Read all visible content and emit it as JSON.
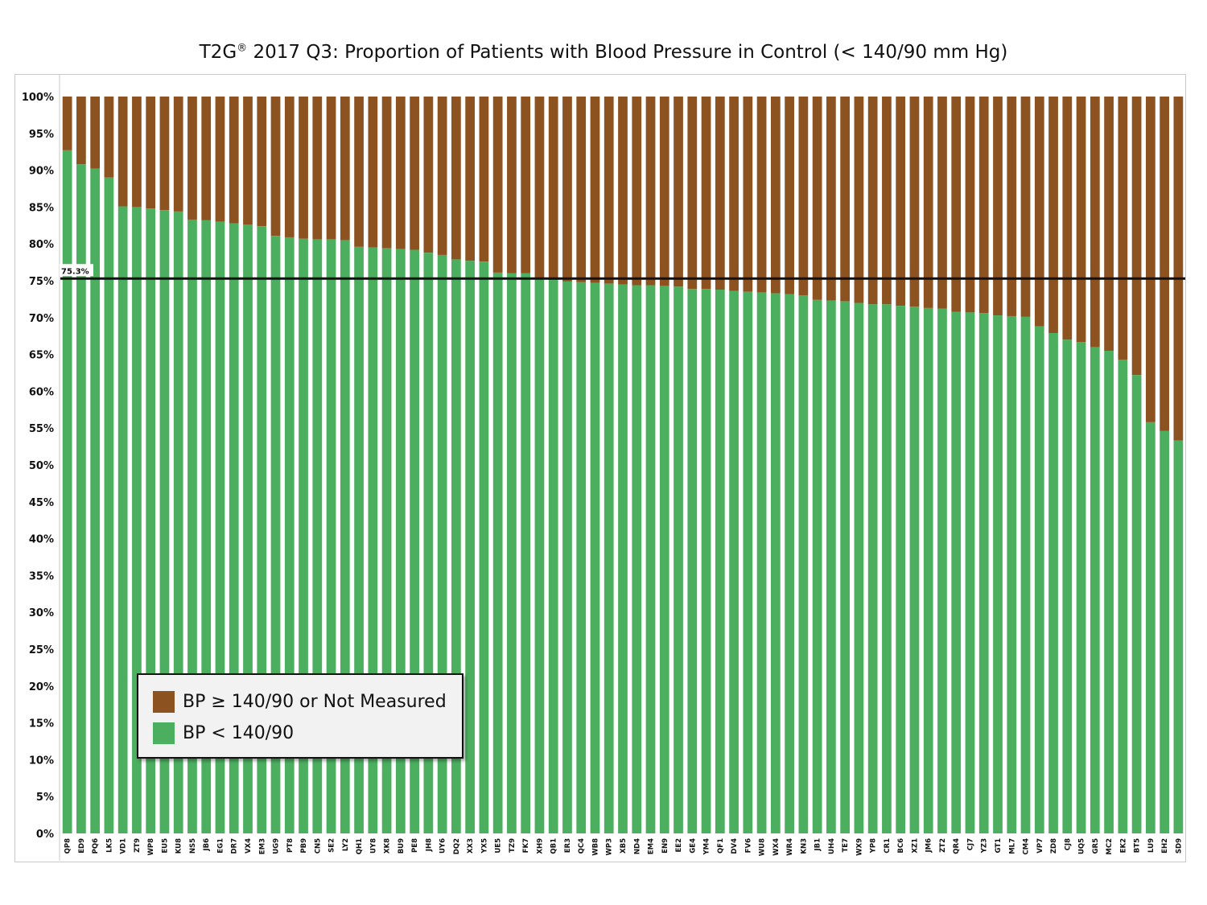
{
  "title_main": "T2G",
  "title_reg": "®",
  "title_rest": " 2017 Q3: Proportion of Patients with Blood Pressure in Control (< 140/90 mm Hg)",
  "colors": {
    "controlled": "#4caf5f",
    "uncontrolled": "#8c5220",
    "reference": "#111111"
  },
  "legend": {
    "uncontrolled_label": "BP ≥ 140/90 or Not Measured",
    "controlled_label": "BP < 140/90"
  },
  "chart_data": {
    "type": "bar",
    "stacked": true,
    "title": "T2G® 2017 Q3: Proportion of Patients with Blood Pressure in Control (< 140/90 mm Hg)",
    "ylim": [
      0,
      100
    ],
    "ytick_labels": [
      "0%",
      "5%",
      "10%",
      "15%",
      "20%",
      "25%",
      "30%",
      "35%",
      "40%",
      "45%",
      "50%",
      "55%",
      "60%",
      "65%",
      "70%",
      "75%",
      "80%",
      "85%",
      "90%",
      "95%",
      "100%"
    ],
    "reference_line": {
      "value": 75.3,
      "label": "75.3%"
    },
    "legend_position": "bottom-left",
    "categories": [
      "QP8",
      "ED9",
      "PQ6",
      "LK5",
      "VD1",
      "ZT9",
      "WP8",
      "EU5",
      "KU8",
      "NS5",
      "JB6",
      "EG1",
      "DR7",
      "VX4",
      "EM3",
      "UG9",
      "PT8",
      "PB9",
      "CN5",
      "SE2",
      "LY2",
      "QH1",
      "UY8",
      "XK8",
      "BU9",
      "PE8",
      "JH8",
      "UY6",
      "DQ2",
      "XX3",
      "YX5",
      "UE5",
      "TZ9",
      "FK7",
      "XH9",
      "QB1",
      "ER3",
      "QC4",
      "WB8",
      "WP3",
      "XB5",
      "ND4",
      "EM4",
      "EN9",
      "EE2",
      "GE4",
      "YM4",
      "QF1",
      "DV4",
      "FV6",
      "WU8",
      "WX4",
      "WR4",
      "KN3",
      "JB1",
      "UH4",
      "TE7",
      "WX9",
      "YP8",
      "CR1",
      "BC6",
      "XZ1",
      "JM6",
      "ZT2",
      "QR4",
      "CJ7",
      "YZ3",
      "GT1",
      "ML7",
      "CM4",
      "VP7",
      "ZD8",
      "CJ8",
      "UQ5",
      "GR5",
      "MC2",
      "EK2",
      "BT5",
      "LU9",
      "EH2",
      "SD9"
    ],
    "series": [
      {
        "name": "BP < 140/90",
        "values": [
          92.7,
          90.8,
          90.2,
          89.0,
          85.1,
          85.0,
          84.8,
          84.6,
          84.4,
          83.3,
          83.2,
          83.0,
          82.8,
          82.6,
          82.4,
          81.1,
          80.9,
          80.7,
          80.6,
          80.6,
          80.5,
          79.6,
          79.5,
          79.4,
          79.3,
          79.2,
          78.8,
          78.5,
          77.9,
          77.7,
          77.6,
          76.1,
          76.0,
          76.0,
          75.2,
          75.1,
          74.9,
          74.8,
          74.7,
          74.6,
          74.5,
          74.4,
          74.4,
          74.3,
          74.2,
          73.9,
          73.9,
          73.8,
          73.6,
          73.5,
          73.4,
          73.3,
          73.2,
          73.0,
          72.4,
          72.3,
          72.2,
          72.0,
          71.8,
          71.8,
          71.6,
          71.5,
          71.3,
          71.2,
          70.8,
          70.7,
          70.6,
          70.3,
          70.2,
          70.1,
          68.8,
          67.9,
          67.0,
          66.7,
          66.0,
          65.5,
          64.3,
          62.2,
          55.8,
          54.6,
          53.3
        ]
      },
      {
        "name": "BP ≥ 140/90 or Not Measured",
        "values": "complement to 100%"
      }
    ]
  }
}
